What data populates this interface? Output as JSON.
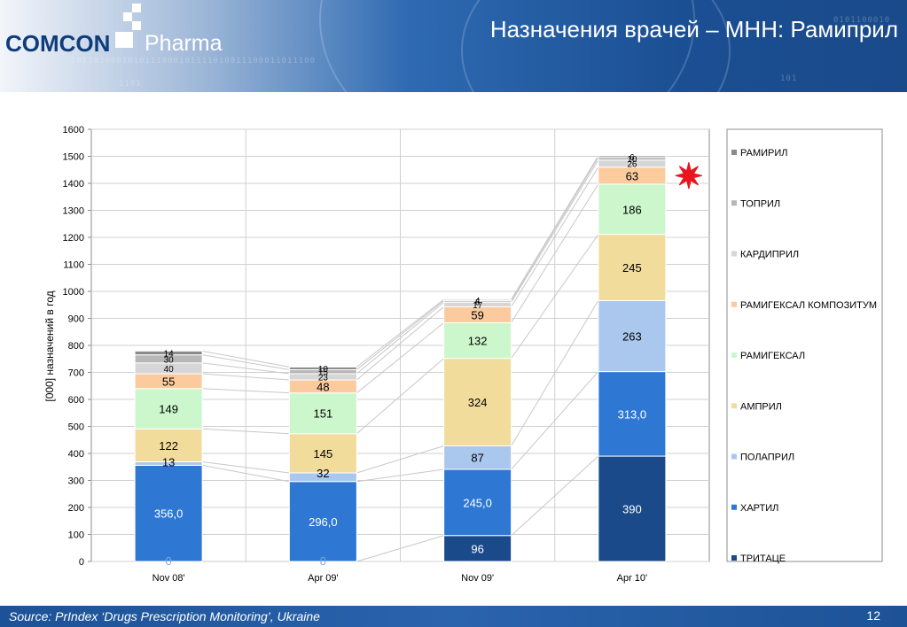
{
  "header": {
    "logo_brand": "COMCON",
    "logo_sub": "Pharma",
    "title": "Назначения врачей – МНН: Рамиприл"
  },
  "footer": {
    "source": "Source:  PrIndex  ‘Drugs Prescription Monitoring’, Ukraine",
    "page_number": "12"
  },
  "colors": {
    "ТРИТАЦЕ": "#1a4a8a",
    "ХАРТИЛ": "#2e78d4",
    "ПОЛАПРИЛ": "#aac8ee",
    "АМПРИЛ": "#f2dc9c",
    "РАМИГЕКСАЛ": "#ccf7cc",
    "РАМИГЕКСАЛ КОМПОЗИТУМ": "#fbcb9e",
    "КАРДИПРИЛ": "#d6d6d6",
    "ТОПРИЛ": "#b7b7b7",
    "РАМИРИЛ": "#8a8a8a",
    "marker": "#e8141e"
  },
  "chart_data": {
    "type": "bar",
    "stacked": true,
    "categories": [
      "Nov 08'",
      "Apr 09'",
      "Nov 09'",
      "Apr 10'"
    ],
    "ylabel": "[000] назначений в год",
    "ylim": [
      0,
      1600
    ],
    "yticks": [
      0,
      100,
      200,
      300,
      400,
      500,
      600,
      700,
      800,
      900,
      1000,
      1100,
      1200,
      1300,
      1400,
      1500,
      1600
    ],
    "grid": true,
    "legend_position": "right",
    "series": [
      {
        "name": "ТРИТАЦЕ",
        "values": [
          0,
          0,
          96,
          390
        ],
        "labels": [
          "0",
          "0",
          "96",
          "390"
        ]
      },
      {
        "name": "ХАРТИЛ",
        "values": [
          356,
          296,
          245,
          313
        ],
        "labels": [
          "356,0",
          "296,0",
          "245,0",
          "313,0"
        ]
      },
      {
        "name": "ПОЛАПРИЛ",
        "values": [
          13,
          32,
          87,
          263
        ],
        "labels": [
          "13",
          "32",
          "87",
          "263"
        ]
      },
      {
        "name": "АМПРИЛ",
        "values": [
          122,
          145,
          324,
          245
        ],
        "labels": [
          "122",
          "145",
          "324",
          "245"
        ]
      },
      {
        "name": "РАМИГЕКСАЛ",
        "values": [
          149,
          151,
          132,
          186
        ],
        "labels": [
          "149",
          "151",
          "132",
          "186"
        ]
      },
      {
        "name": "РАМИГЕКСАЛ КОМПОЗИТУМ",
        "values": [
          55,
          48,
          59,
          63
        ],
        "labels": [
          "55",
          "48",
          "59",
          "63"
        ]
      },
      {
        "name": "КАРДИПРИЛ",
        "values": [
          40,
          23,
          17,
          26
        ],
        "labels": [
          "40",
          "23",
          "17",
          "26"
        ]
      },
      {
        "name": "ТОПРИЛ",
        "values": [
          30,
          15,
          6,
          10
        ],
        "labels": [
          "30",
          "15",
          "6",
          "10"
        ]
      },
      {
        "name": "РАМИРИЛ",
        "values": [
          14,
          10,
          4,
          6
        ],
        "labels": [
          "14",
          "10",
          "4",
          "6"
        ]
      }
    ],
    "annotation": {
      "category": "Apr 10'",
      "type": "red-star-marker"
    }
  }
}
